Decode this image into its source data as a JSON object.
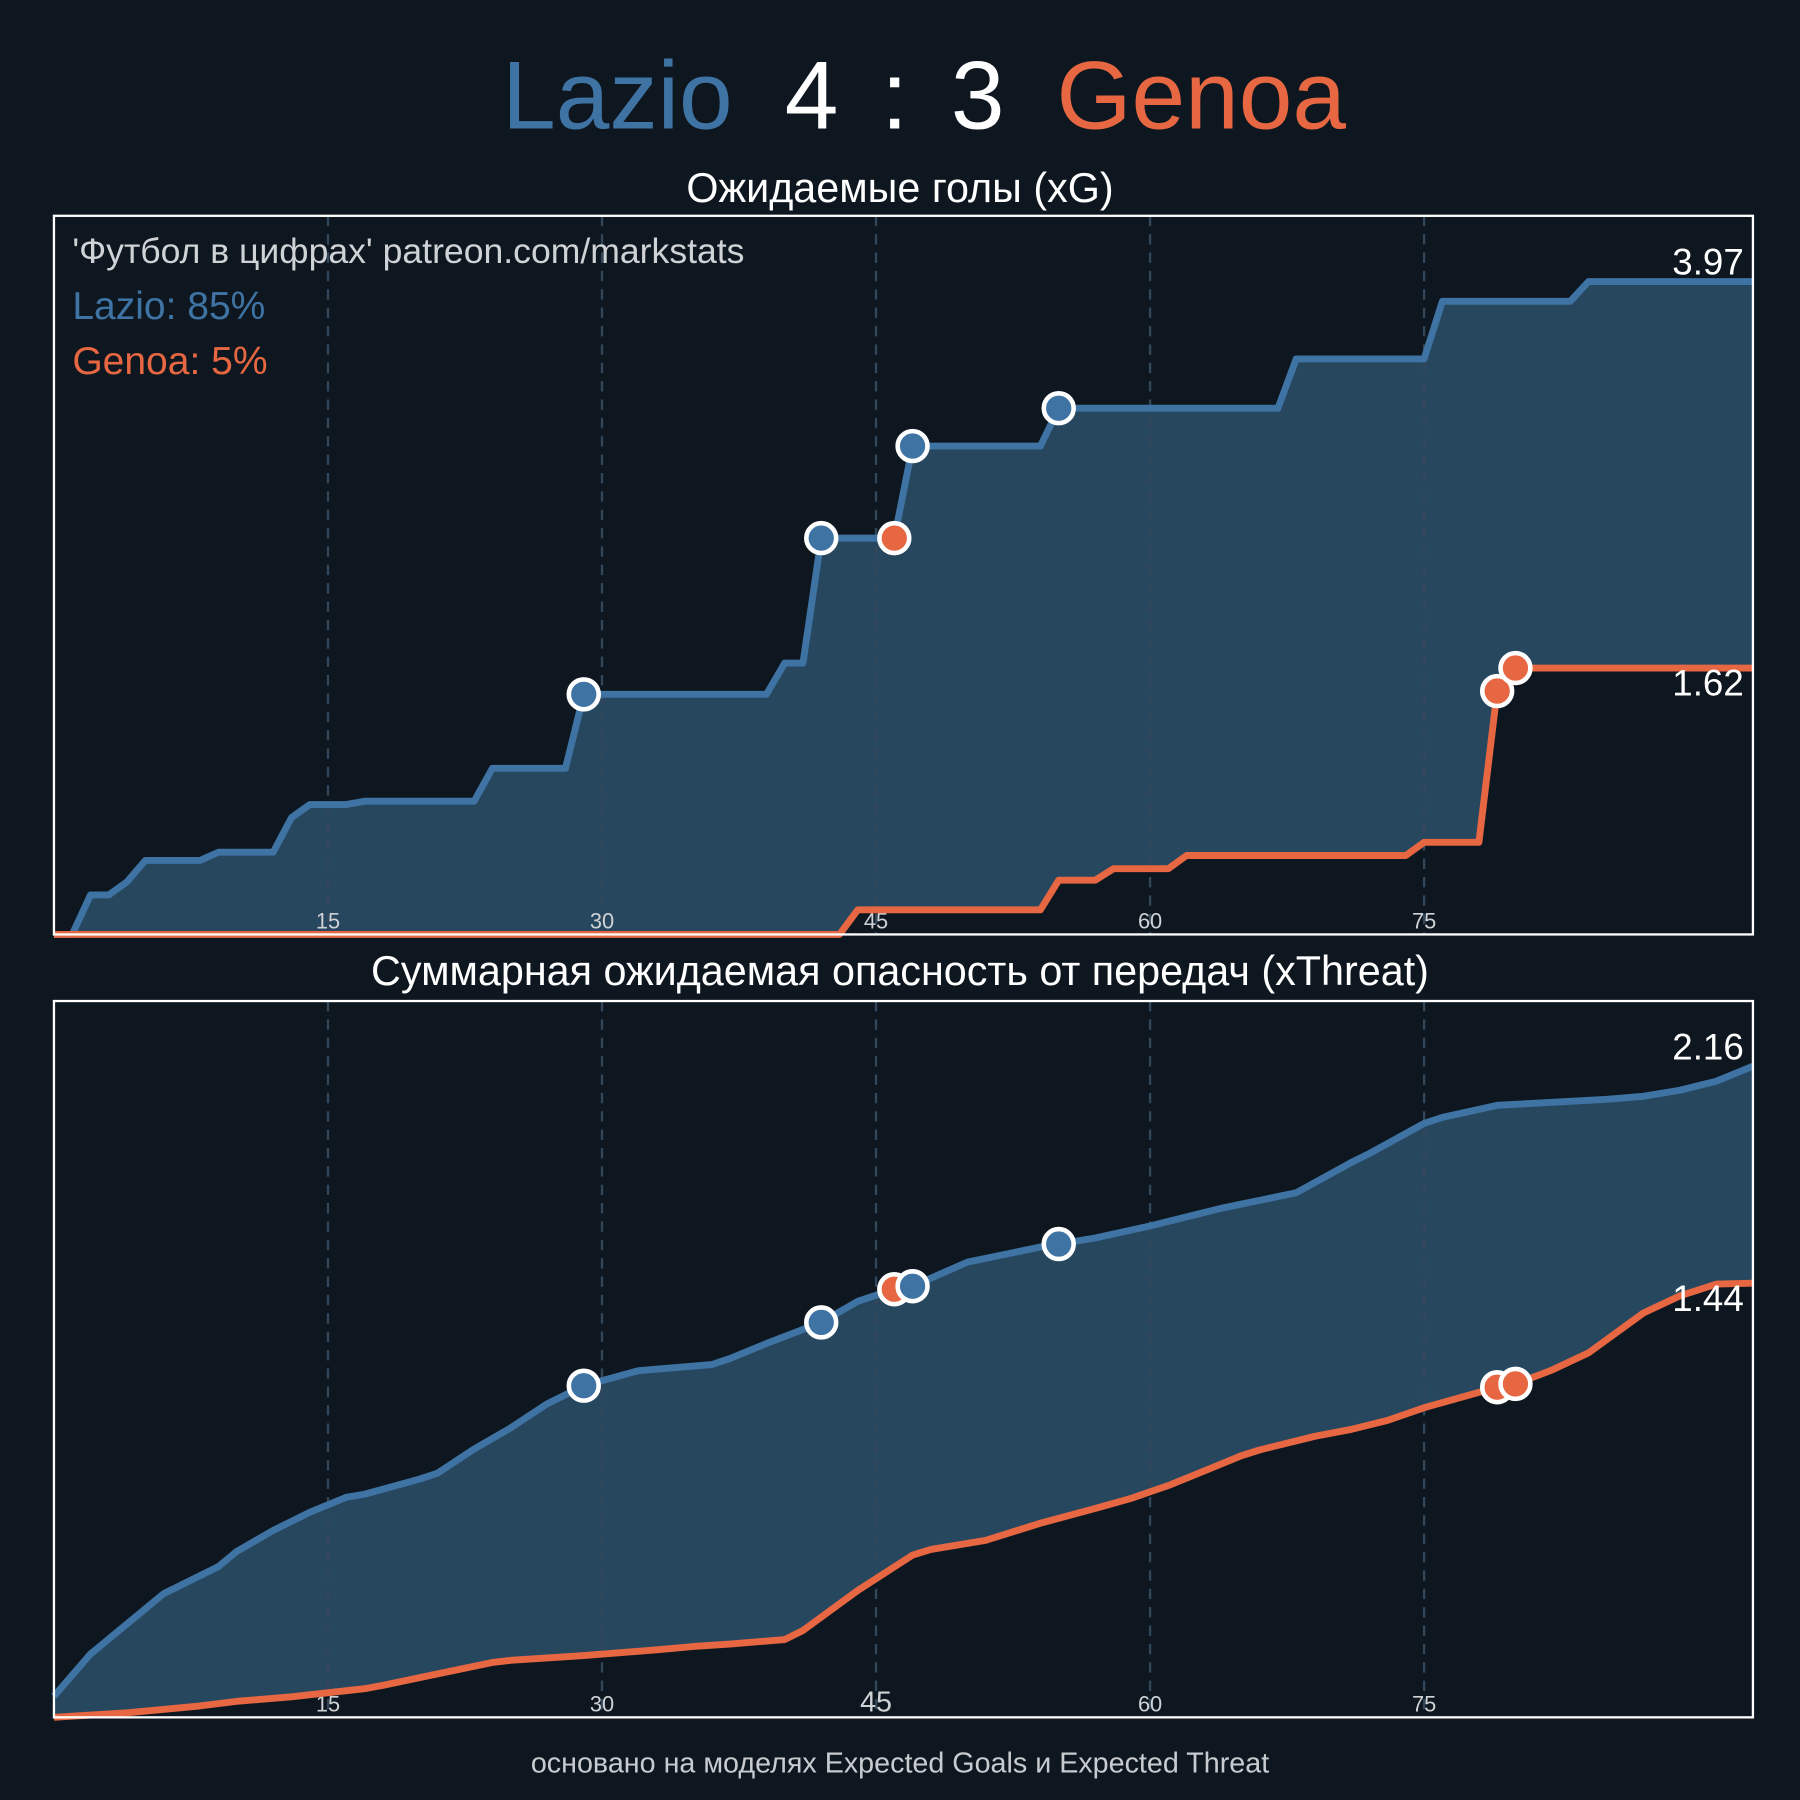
{
  "header": {
    "home_team": "Lazio",
    "score_home": "4",
    "separator": ":",
    "score_away": "3",
    "away_team": "Genoa"
  },
  "colors": {
    "background": "#0e1720",
    "home": "#3e73a3",
    "away": "#e66741",
    "fill": "#27475f",
    "grid": "#2b3a48",
    "text": "#ffffff"
  },
  "watermark": "'Футбол в цифрах' patreon.com/markstats",
  "win_probability": {
    "home_label": "Lazio: 85%",
    "away_label": "Genoa: 5%",
    "home": 85,
    "away": 5
  },
  "footer": "основано на моделях Expected Goals и Expected Threat",
  "chart_data": [
    {
      "type": "line",
      "title": "Ожидаемые голы (xG)",
      "xlim": [
        0,
        93
      ],
      "ylim": [
        0,
        4.37
      ],
      "grid": "vertical dashed",
      "xticks": [
        15,
        30,
        45,
        60,
        75
      ],
      "xtick_labels": [
        "15",
        "30",
        "45",
        "60",
        "75"
      ],
      "fill_between": true,
      "series": [
        {
          "name": "Lazio",
          "color": "#3e73a3",
          "final_label": "3.97",
          "points": [
            [
              0,
              0
            ],
            [
              1,
              0
            ],
            [
              2,
              0.24
            ],
            [
              3,
              0.24
            ],
            [
              4,
              0.32
            ],
            [
              5,
              0.45
            ],
            [
              8,
              0.45
            ],
            [
              9,
              0.5
            ],
            [
              12,
              0.5
            ],
            [
              13,
              0.71
            ],
            [
              14,
              0.79
            ],
            [
              16,
              0.79
            ],
            [
              17,
              0.81
            ],
            [
              23,
              0.81
            ],
            [
              24,
              1.01
            ],
            [
              28,
              1.01
            ],
            [
              29,
              1.46
            ],
            [
              39,
              1.46
            ],
            [
              40,
              1.65
            ],
            [
              41,
              1.65
            ],
            [
              42,
              2.41
            ],
            [
              46,
              2.41
            ],
            [
              47,
              2.97
            ],
            [
              54,
              2.97
            ],
            [
              55,
              3.2
            ],
            [
              67,
              3.2
            ],
            [
              68,
              3.5
            ],
            [
              75,
              3.5
            ],
            [
              76,
              3.85
            ],
            [
              83,
              3.85
            ],
            [
              84,
              3.97
            ],
            [
              93,
              3.97
            ]
          ]
        },
        {
          "name": "Genoa",
          "color": "#e66741",
          "final_label": "1.62",
          "points": [
            [
              0,
              0
            ],
            [
              43,
              0
            ],
            [
              44,
              0.15
            ],
            [
              54,
              0.15
            ],
            [
              55,
              0.33
            ],
            [
              57,
              0.33
            ],
            [
              58,
              0.4
            ],
            [
              61,
              0.4
            ],
            [
              62,
              0.48
            ],
            [
              74,
              0.48
            ],
            [
              75,
              0.56
            ],
            [
              78,
              0.56
            ],
            [
              79,
              1.48
            ],
            [
              80,
              1.62
            ],
            [
              93,
              1.62
            ]
          ]
        }
      ],
      "goals": [
        {
          "minute": 29,
          "team": "Lazio",
          "on_series": "Lazio"
        },
        {
          "minute": 42,
          "team": "Lazio",
          "on_series": "Lazio"
        },
        {
          "minute": 46,
          "team": "Genoa",
          "on_series": "Lazio"
        },
        {
          "minute": 47,
          "team": "Lazio",
          "on_series": "Lazio"
        },
        {
          "minute": 55,
          "team": "Lazio",
          "on_series": "Lazio"
        },
        {
          "minute": 79,
          "team": "Genoa",
          "on_series": "Genoa"
        },
        {
          "minute": 80,
          "team": "Genoa",
          "on_series": "Genoa"
        }
      ]
    },
    {
      "type": "line",
      "title": "Суммарная ожидаемая опасность от передач (xThreat)",
      "xlim": [
        0,
        93
      ],
      "ylim": [
        0,
        2.376
      ],
      "grid": "vertical dashed",
      "xticks": [
        15,
        30,
        45,
        60,
        75
      ],
      "xtick_labels": [
        "15",
        "30",
        "45",
        "60",
        "75"
      ],
      "fill_between": true,
      "series": [
        {
          "name": "Lazio",
          "color": "#3e73a3",
          "final_label": "2.16",
          "points": [
            [
              0,
              0.07
            ],
            [
              2,
              0.21
            ],
            [
              5,
              0.36
            ],
            [
              6,
              0.41
            ],
            [
              9,
              0.5
            ],
            [
              10,
              0.55
            ],
            [
              12,
              0.62
            ],
            [
              14,
              0.68
            ],
            [
              16,
              0.73
            ],
            [
              17,
              0.74
            ],
            [
              20,
              0.79
            ],
            [
              21,
              0.81
            ],
            [
              23,
              0.89
            ],
            [
              25,
              0.96
            ],
            [
              27,
              1.04
            ],
            [
              29,
              1.1
            ],
            [
              32,
              1.15
            ],
            [
              36,
              1.17
            ],
            [
              37,
              1.19
            ],
            [
              39,
              1.24
            ],
            [
              42,
              1.31
            ],
            [
              44,
              1.38
            ],
            [
              46,
              1.42
            ],
            [
              47,
              1.43
            ],
            [
              50,
              1.51
            ],
            [
              54,
              1.56
            ],
            [
              55,
              1.57
            ],
            [
              57,
              1.59
            ],
            [
              60,
              1.63
            ],
            [
              62,
              1.66
            ],
            [
              64,
              1.69
            ],
            [
              68,
              1.74
            ],
            [
              71,
              1.84
            ],
            [
              72,
              1.87
            ],
            [
              75,
              1.97
            ],
            [
              76,
              1.99
            ],
            [
              79,
              2.03
            ],
            [
              82,
              2.04
            ],
            [
              85,
              2.05
            ],
            [
              87,
              2.06
            ],
            [
              89,
              2.08
            ],
            [
              91,
              2.11
            ],
            [
              93,
              2.16
            ]
          ]
        },
        {
          "name": "Genoa",
          "color": "#e66741",
          "final_label": "1.44",
          "points": [
            [
              0,
              0
            ],
            [
              4,
              0.015
            ],
            [
              8,
              0.038
            ],
            [
              10,
              0.053
            ],
            [
              13,
              0.068
            ],
            [
              17,
              0.095
            ],
            [
              18,
              0.106
            ],
            [
              21,
              0.144
            ],
            [
              24,
              0.182
            ],
            [
              25,
              0.189
            ],
            [
              29,
              0.205
            ],
            [
              33,
              0.224
            ],
            [
              35,
              0.235
            ],
            [
              37,
              0.243
            ],
            [
              40,
              0.258
            ],
            [
              41,
              0.288
            ],
            [
              44,
              0.421
            ],
            [
              47,
              0.538
            ],
            [
              48,
              0.557
            ],
            [
              51,
              0.587
            ],
            [
              54,
              0.644
            ],
            [
              57,
              0.693
            ],
            [
              59,
              0.727
            ],
            [
              61,
              0.769
            ],
            [
              63,
              0.818
            ],
            [
              65,
              0.868
            ],
            [
              66,
              0.887
            ],
            [
              69,
              0.932
            ],
            [
              71,
              0.955
            ],
            [
              73,
              0.985
            ],
            [
              75,
              1.027
            ],
            [
              79,
              1.095
            ],
            [
              80,
              1.106
            ],
            [
              82,
              1.152
            ],
            [
              84,
              1.209
            ],
            [
              87,
              1.341
            ],
            [
              89,
              1.398
            ],
            [
              91,
              1.437
            ],
            [
              93,
              1.44
            ]
          ]
        }
      ],
      "goals": [
        {
          "minute": 29,
          "team": "Lazio",
          "on_series": "Lazio"
        },
        {
          "minute": 42,
          "team": "Lazio",
          "on_series": "Lazio"
        },
        {
          "minute": 46,
          "team": "Genoa",
          "on_series": "Lazio"
        },
        {
          "minute": 47,
          "team": "Lazio",
          "on_series": "Lazio"
        },
        {
          "minute": 55,
          "team": "Lazio",
          "on_series": "Lazio"
        },
        {
          "minute": 79,
          "team": "Genoa",
          "on_series": "Genoa"
        },
        {
          "minute": 80,
          "team": "Genoa",
          "on_series": "Genoa"
        }
      ]
    }
  ]
}
